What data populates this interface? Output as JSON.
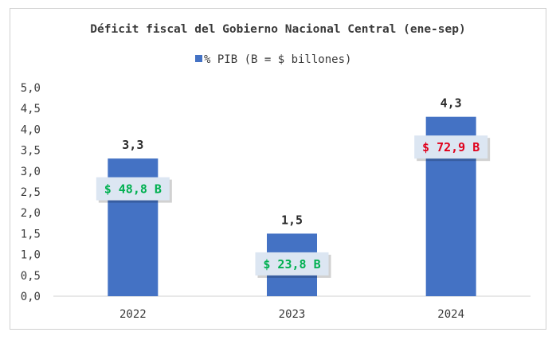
{
  "chart_data": {
    "type": "bar",
    "title": "Déficit fiscal del Gobierno Nacional Central (ene-sep)",
    "legend": "% PIB (B = $ billones)",
    "legend_position": "top",
    "categories": [
      "2022",
      "2023",
      "2024"
    ],
    "series": [
      {
        "name": "% PIB (B = $ billones)",
        "values": [
          3.3,
          1.5,
          4.3
        ]
      }
    ],
    "value_labels": [
      "3,3",
      "1,5",
      "4,3"
    ],
    "amount_labels": [
      "$ 48,8 B",
      "$ 23,8 B",
      "$ 72,9 B"
    ],
    "y_tick_labels": [
      "0,0",
      "0,5",
      "1,0",
      "1,5",
      "2,0",
      "2,5",
      "3,0",
      "3,5",
      "4,0",
      "4,5",
      "5,0"
    ],
    "ylim": [
      0,
      5
    ],
    "ystep": 0.5,
    "grid": false,
    "colors": {
      "bar": "#4472C4",
      "positive_amount": "#00B050",
      "negative_amount": "#E0001B",
      "amount_box": "#DCE6F2"
    },
    "amount_colors": [
      "#00B050",
      "#00B050",
      "#E0001B"
    ]
  }
}
